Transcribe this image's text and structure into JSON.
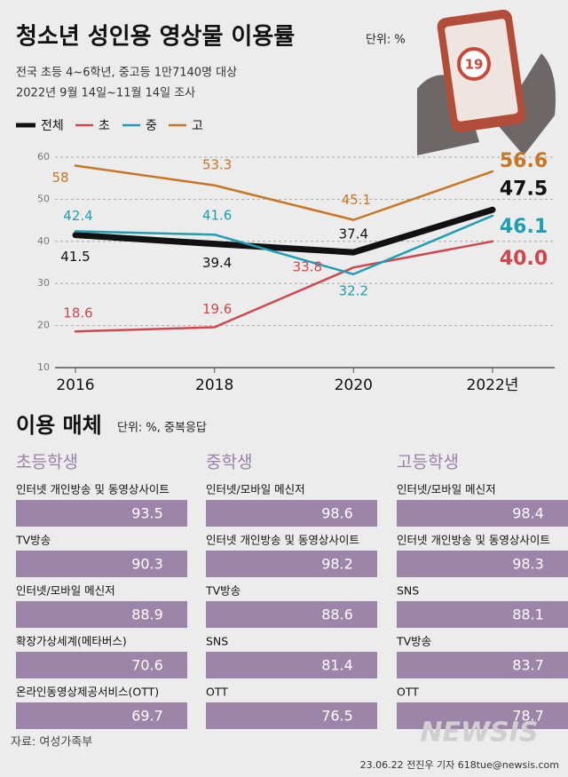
{
  "header": {
    "title": "청소년 성인용 영상물 이용률",
    "unit": "단위: %",
    "subtitle": [
      "전국 초등 4~6학년, 중고등 1만7140명 대상",
      "2022년 9월 14일~11월 14일 조사"
    ]
  },
  "illustration": {
    "badge": "19"
  },
  "chart_data": {
    "type": "line",
    "categories": [
      "2016",
      "2018",
      "2020",
      "2022년"
    ],
    "series": [
      {
        "name": "전체",
        "color": "#111111",
        "values": [
          41.5,
          39.4,
          37.4,
          47.5
        ]
      },
      {
        "name": "초",
        "color": "#d0464d",
        "values": [
          18.6,
          19.6,
          33.8,
          40.0
        ],
        "value_labels": [
          "18.6",
          "19.6",
          "33.8",
          "40.0"
        ]
      },
      {
        "name": "중",
        "color": "#1e9db3",
        "values": [
          42.4,
          41.6,
          32.2,
          46.1
        ]
      },
      {
        "name": "고",
        "color": "#c87624",
        "values": [
          58,
          53.3,
          45.1,
          56.6
        ]
      }
    ],
    "ylim": [
      10,
      60
    ],
    "yticks": [
      10,
      20,
      30,
      40,
      50,
      60
    ],
    "grid": true
  },
  "media": {
    "title": "이용 매체",
    "unit": "단위: %, 중복응답",
    "color": "#9d84a9",
    "groups": [
      {
        "name": "초등학생",
        "items": [
          {
            "label": "인터넷 개인방송 및 동영상사이트",
            "value": 93.5
          },
          {
            "label": "TV방송",
            "value": 90.3
          },
          {
            "label": "인터넷/모바일 메신저",
            "value": 88.9
          },
          {
            "label": "확장가상세계(메타버스)",
            "value": 70.6
          },
          {
            "label": "온라인동영상제공서비스(OTT)",
            "value": 69.7
          }
        ]
      },
      {
        "name": "중학생",
        "items": [
          {
            "label": "인터넷/모바일 메신저",
            "value": 98.6
          },
          {
            "label": "인터넷 개인방송 및 동영상사이트",
            "value": 98.2
          },
          {
            "label": "TV방송",
            "value": 88.6
          },
          {
            "label": "SNS",
            "value": 81.4
          },
          {
            "label": "OTT",
            "value": 76.5
          }
        ]
      },
      {
        "name": "고등학생",
        "items": [
          {
            "label": "인터넷/모바일 메신저",
            "value": 98.4
          },
          {
            "label": "인터넷 개인방송 및 동영상사이트",
            "value": 98.3
          },
          {
            "label": "SNS",
            "value": 88.1
          },
          {
            "label": "TV방송",
            "value": 83.7
          },
          {
            "label": "OTT",
            "value": 78.7
          }
        ]
      }
    ]
  },
  "footer": {
    "source": "자료: 여성가족부",
    "watermark": "NEWSIS",
    "credit": "23.06.22 전진우 기자 618tue@newsis.com"
  }
}
